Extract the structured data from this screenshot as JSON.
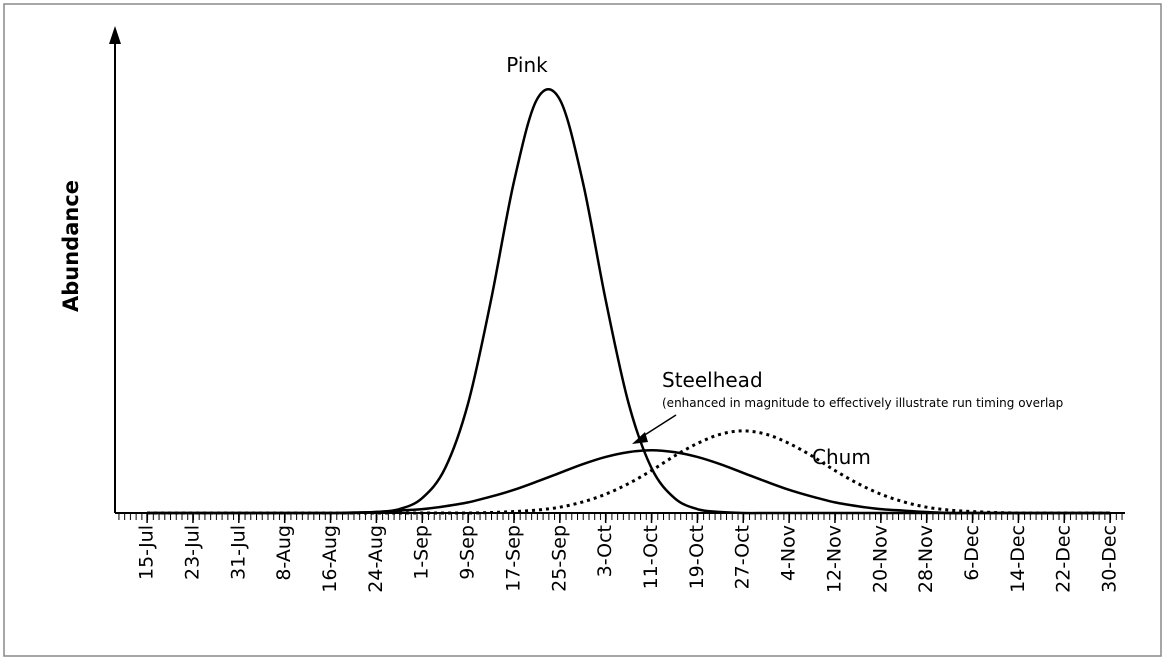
{
  "chart_data": {
    "type": "line",
    "y_label": "Abundance",
    "annotations": [
      {
        "text": "Pink"
      },
      {
        "text": "Steelhead"
      },
      {
        "text": "(enhanced in magnitude to effectively illustrate run timing overlap"
      },
      {
        "text": "Chum"
      }
    ],
    "xlim": [
      -5.6,
      170.6
    ],
    "ylim": [
      0,
      100
    ],
    "xticks": [
      {
        "value": 0,
        "label": "15-Jul"
      },
      {
        "value": 8,
        "label": "23-Jul"
      },
      {
        "value": 16,
        "label": "31-Jul"
      },
      {
        "value": 24,
        "label": "8-Aug"
      },
      {
        "value": 32,
        "label": "16-Aug"
      },
      {
        "value": 40,
        "label": "24-Aug"
      },
      {
        "value": 48,
        "label": "1-Sep"
      },
      {
        "value": 56,
        "label": "9-Sep"
      },
      {
        "value": 64,
        "label": "17-Sep"
      },
      {
        "value": 72,
        "label": "25-Sep"
      },
      {
        "value": 80,
        "label": "3-Oct"
      },
      {
        "value": 88,
        "label": "11-Oct"
      },
      {
        "value": 96,
        "label": "19-Oct"
      },
      {
        "value": 104,
        "label": "27-Oct"
      },
      {
        "value": 112,
        "label": "4-Nov"
      },
      {
        "value": 120,
        "label": "12-Nov"
      },
      {
        "value": 128,
        "label": "20-Nov"
      },
      {
        "value": 136,
        "label": "28-Nov"
      },
      {
        "value": 144,
        "label": "6-Dec"
      },
      {
        "value": 152,
        "label": "14-Dec"
      },
      {
        "value": 160,
        "label": "22-Dec"
      },
      {
        "value": 168,
        "label": "30-Dec"
      }
    ],
    "x": [
      0,
      4,
      8,
      12,
      16,
      20,
      24,
      28,
      32,
      36,
      40,
      44,
      48,
      52,
      56,
      60,
      64,
      68,
      72,
      76,
      80,
      84,
      88,
      92,
      96,
      100,
      104,
      108,
      112,
      116,
      120,
      124,
      128,
      132,
      136,
      140,
      144,
      148,
      152,
      156,
      160,
      164,
      168
    ],
    "series": [
      {
        "name": "Pink",
        "color": "#000000",
        "line_style": "solid",
        "values": [
          0,
          0,
          0,
          0,
          0,
          0,
          0,
          0,
          0,
          0,
          0.2,
          0.8,
          3.1,
          9.3,
          22.7,
          44.1,
          68.6,
          85.6,
          85.6,
          68.6,
          44.1,
          22.7,
          9.3,
          3.1,
          0.8,
          0.2,
          0,
          0,
          0,
          0,
          0,
          0,
          0,
          0,
          0,
          0,
          0,
          0,
          0,
          0,
          0,
          0,
          0
        ]
      },
      {
        "name": "Steelhead",
        "color": "#000000",
        "line_style": "solid",
        "values": [
          0,
          0,
          0,
          0,
          0,
          0,
          0,
          0,
          0,
          0.1,
          0.2,
          0.5,
          0.8,
          1.4,
          2.2,
          3.4,
          4.8,
          6.5,
          8.3,
          10.1,
          11.6,
          12.6,
          13,
          12.6,
          11.6,
          10.1,
          8.3,
          6.5,
          4.8,
          3.4,
          2.2,
          1.4,
          0.8,
          0.5,
          0.2,
          0,
          0,
          0,
          0,
          0,
          0,
          0,
          0
        ]
      },
      {
        "name": "Chum",
        "color": "#000000",
        "line_style": "dotted",
        "values": [
          0,
          0,
          0,
          0,
          0,
          0,
          0,
          0,
          0,
          0,
          0,
          0,
          0,
          0,
          0,
          0.1,
          0.3,
          0.6,
          1.2,
          2.3,
          3.9,
          6.1,
          8.8,
          11.8,
          14.4,
          16.3,
          17,
          16.3,
          14.4,
          11.8,
          8.8,
          6.1,
          3.9,
          2.3,
          1.2,
          0.6,
          0.3,
          0.1,
          0,
          0,
          0,
          0,
          0
        ]
      }
    ]
  }
}
